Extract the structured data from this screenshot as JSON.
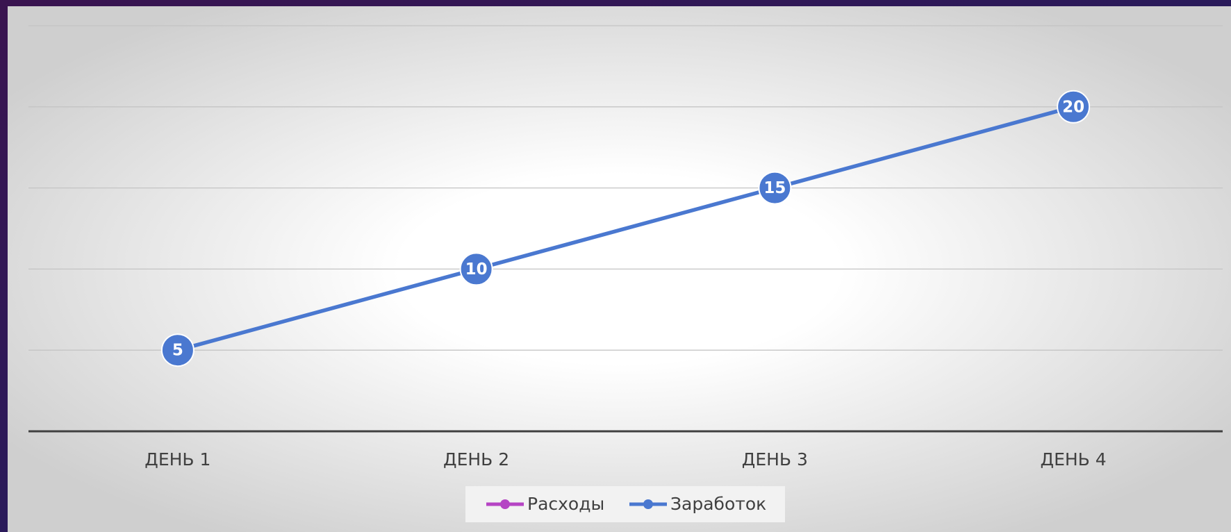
{
  "chart_data": {
    "type": "line",
    "categories": [
      "ДЕНЬ 1",
      "ДЕНЬ 2",
      "ДЕНЬ 3",
      "ДЕНЬ 4"
    ],
    "series": [
      {
        "name": "Расходы",
        "color": "#b544c4",
        "values": [
          null,
          null,
          null,
          null
        ]
      },
      {
        "name": "Заработок",
        "color": "#4a78d0",
        "values": [
          5,
          10,
          15,
          20
        ]
      }
    ],
    "ylim": [
      0,
      25
    ],
    "yticks": [
      0,
      5,
      10,
      15,
      20,
      25
    ],
    "grid": true,
    "legend": "bottom"
  }
}
